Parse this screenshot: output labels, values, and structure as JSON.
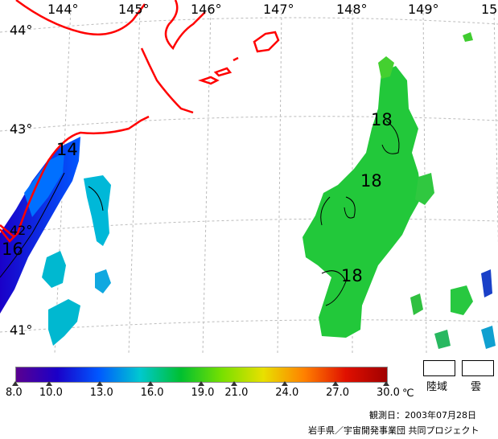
{
  "map": {
    "longitude_labels": [
      "144°",
      "145°",
      "146°",
      "147°",
      "148°",
      "149°",
      "15"
    ],
    "latitude_labels": [
      "44°",
      "43°",
      "42°",
      "41°"
    ],
    "isotherm_labels": [
      "14",
      "16",
      "18",
      "18",
      "18"
    ]
  },
  "colorbar": {
    "ticks": [
      "8.0",
      "10.0",
      "13.0",
      "16.0",
      "19.0",
      "21.0",
      "24.0",
      "27.0",
      "30.0"
    ],
    "unit": "℃",
    "min": 8.0,
    "max": 30.0,
    "colors": [
      "#5a0090",
      "#1a00c8",
      "#0058ff",
      "#00c8d0",
      "#00c030",
      "#78e000",
      "#e8e000",
      "#ff8000",
      "#e01000",
      "#a00000"
    ]
  },
  "legend": {
    "land_label": "陸域",
    "cloud_label": "雲"
  },
  "footer": {
    "observation_date": "観測日：2003年07月28日",
    "credit": "岩手県／宇宙開発事業団 共同プロジェクト"
  },
  "styles": {
    "coastline_color": "#ff0000",
    "graticule_color": "#bbbbbb"
  }
}
